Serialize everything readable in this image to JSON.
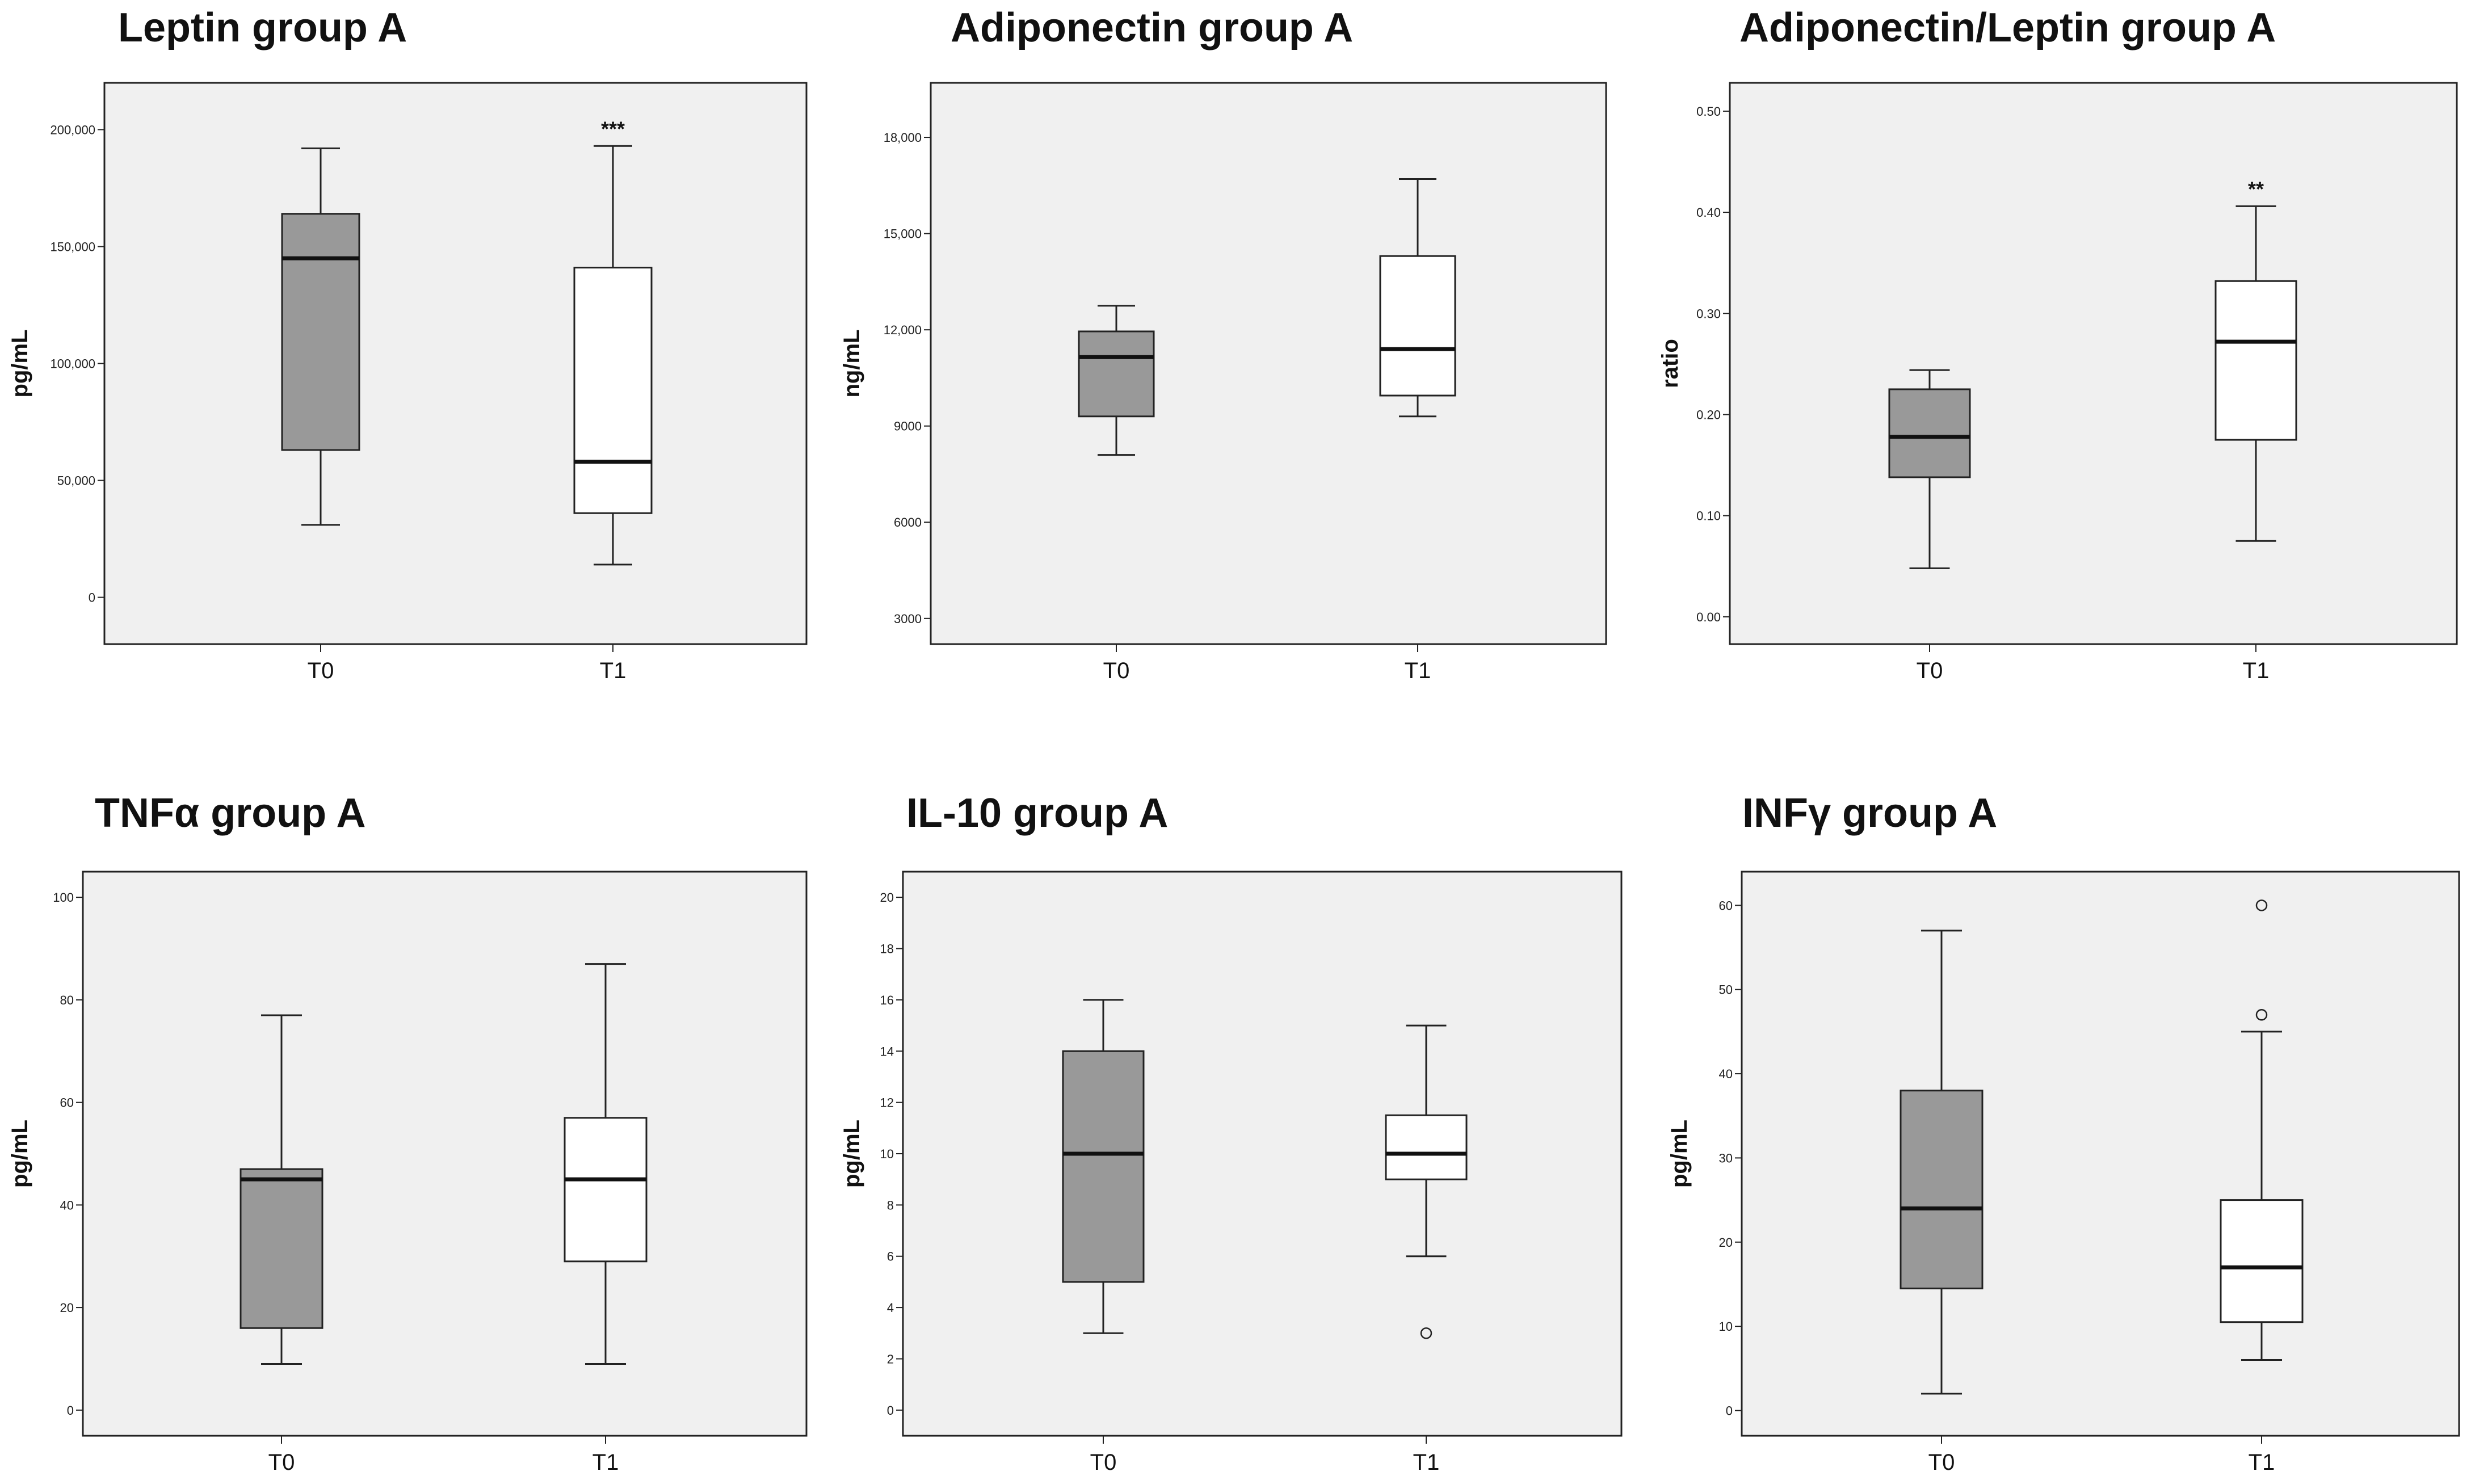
{
  "chart_data": [
    {
      "type": "boxplot",
      "title": "Leptin group A",
      "ylabel": "pg/mL",
      "xlabel": "",
      "ylim": [
        -20000,
        220000
      ],
      "yticks": [
        0,
        50000,
        100000,
        150000,
        200000
      ],
      "ytick_labels": [
        "0",
        "50,000",
        "100,000",
        "150,000",
        "200,000"
      ],
      "categories": [
        "T0",
        "T1"
      ],
      "fills": [
        "#999999",
        "#ffffff"
      ],
      "boxes": [
        {
          "min": 31000,
          "q1": 63000,
          "median": 145000,
          "q3": 164000,
          "max": 192000,
          "outliers": []
        },
        {
          "min": 14000,
          "q1": 36000,
          "median": 58000,
          "q3": 141000,
          "max": 193000,
          "outliers": []
        }
      ],
      "annotations": [
        {
          "category": "T1",
          "text": "***"
        }
      ]
    },
    {
      "type": "boxplot",
      "title": "Adiponectin group A",
      "ylabel": "ng/mL",
      "xlabel": "",
      "ylim": [
        2200,
        19700
      ],
      "yticks": [
        3000,
        6000,
        9000,
        12000,
        15000,
        18000
      ],
      "ytick_labels": [
        "3000",
        "6000",
        "9000",
        "12,000",
        "15,000",
        "18,000"
      ],
      "categories": [
        "T0",
        "T1"
      ],
      "fills": [
        "#999999",
        "#ffffff"
      ],
      "boxes": [
        {
          "min": 8100,
          "q1": 9300,
          "median": 11150,
          "q3": 11950,
          "max": 12750,
          "outliers": []
        },
        {
          "min": 9300,
          "q1": 9950,
          "median": 11400,
          "q3": 14300,
          "max": 16700,
          "outliers": []
        }
      ],
      "annotations": []
    },
    {
      "type": "boxplot",
      "title": "Adiponectin/Leptin group A",
      "ylabel": "ratio",
      "xlabel": "",
      "ylim": [
        -0.027,
        0.528
      ],
      "yticks": [
        0.0,
        0.1,
        0.2,
        0.3,
        0.4,
        0.5
      ],
      "ytick_labels": [
        "0.00",
        "0.10",
        "0.20",
        "0.30",
        "0.40",
        "0.50"
      ],
      "categories": [
        "T0",
        "T1"
      ],
      "fills": [
        "#999999",
        "#ffffff"
      ],
      "boxes": [
        {
          "min": 0.048,
          "q1": 0.138,
          "median": 0.178,
          "q3": 0.225,
          "max": 0.244,
          "outliers": []
        },
        {
          "min": 0.075,
          "q1": 0.175,
          "median": 0.272,
          "q3": 0.332,
          "max": 0.406,
          "outliers": []
        }
      ],
      "annotations": [
        {
          "category": "T1",
          "text": "**"
        }
      ]
    },
    {
      "type": "boxplot",
      "title": "TNFα group A",
      "ylabel": "pg/mL",
      "xlabel": "",
      "ylim": [
        -5,
        105
      ],
      "yticks": [
        0,
        20,
        40,
        60,
        80,
        100
      ],
      "ytick_labels": [
        "0",
        "20",
        "40",
        "60",
        "80",
        "100"
      ],
      "categories": [
        "T0",
        "T1"
      ],
      "fills": [
        "#999999",
        "#ffffff"
      ],
      "boxes": [
        {
          "min": 9,
          "q1": 16,
          "median": 45,
          "q3": 47,
          "max": 77,
          "outliers": []
        },
        {
          "min": 9,
          "q1": 29,
          "median": 45,
          "q3": 57,
          "max": 87,
          "outliers": []
        }
      ],
      "annotations": []
    },
    {
      "type": "boxplot",
      "title": "IL-10 group A",
      "ylabel": "pg/mL",
      "xlabel": "",
      "ylim": [
        -1,
        21
      ],
      "yticks": [
        0,
        2,
        4,
        6,
        8,
        10,
        12,
        14,
        16,
        18,
        20
      ],
      "ytick_labels": [
        "0",
        "2",
        "4",
        "6",
        "8",
        "10",
        "12",
        "14",
        "16",
        "18",
        "20"
      ],
      "categories": [
        "T0",
        "T1"
      ],
      "fills": [
        "#999999",
        "#ffffff"
      ],
      "boxes": [
        {
          "min": 3,
          "q1": 5,
          "median": 10,
          "q3": 14,
          "max": 16,
          "outliers": []
        },
        {
          "min": 6,
          "q1": 9,
          "median": 10,
          "q3": 11.5,
          "max": 15,
          "outliers": [
            3
          ]
        }
      ],
      "annotations": []
    },
    {
      "type": "boxplot",
      "title": "INFγ group A",
      "ylabel": "pg/mL",
      "xlabel": "",
      "ylim": [
        -3,
        64
      ],
      "yticks": [
        0,
        10,
        20,
        30,
        40,
        50,
        60
      ],
      "ytick_labels": [
        "0",
        "10",
        "20",
        "30",
        "40",
        "50",
        "60"
      ],
      "categories": [
        "T0",
        "T1"
      ],
      "fills": [
        "#999999",
        "#ffffff"
      ],
      "boxes": [
        {
          "min": 2,
          "q1": 14.5,
          "median": 24,
          "q3": 38,
          "max": 57,
          "outliers": []
        },
        {
          "min": 6,
          "q1": 10.5,
          "median": 17,
          "q3": 25,
          "max": 45,
          "outliers": [
            47,
            60
          ]
        }
      ],
      "annotations": []
    }
  ]
}
